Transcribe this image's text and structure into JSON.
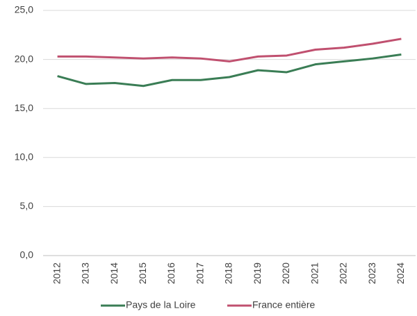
{
  "chart_data": {
    "type": "line",
    "categories": [
      "2012",
      "2013",
      "2014",
      "2015",
      "2016",
      "2017",
      "2018",
      "2019",
      "2020",
      "2021",
      "2022",
      "2023",
      "2024"
    ],
    "series": [
      {
        "name": "Pays de la Loire",
        "color": "#3a7d55",
        "values": [
          18.3,
          17.5,
          17.6,
          17.3,
          17.9,
          17.9,
          18.2,
          18.9,
          18.7,
          19.5,
          19.8,
          20.1,
          20.5
        ]
      },
      {
        "name": "France entière",
        "color": "#c0506f",
        "values": [
          20.3,
          20.3,
          20.2,
          20.1,
          20.2,
          20.1,
          19.8,
          20.3,
          20.4,
          21.0,
          21.2,
          21.6,
          22.1
        ]
      }
    ],
    "ylim": [
      0,
      25
    ],
    "yticks": [
      {
        "value": 0,
        "label": "0,0"
      },
      {
        "value": 5,
        "label": "5,0"
      },
      {
        "value": 10,
        "label": "10,0"
      },
      {
        "value": 15,
        "label": "15,0"
      },
      {
        "value": 20,
        "label": "20,0"
      },
      {
        "value": 25,
        "label": "25,0"
      }
    ],
    "grid": true
  }
}
